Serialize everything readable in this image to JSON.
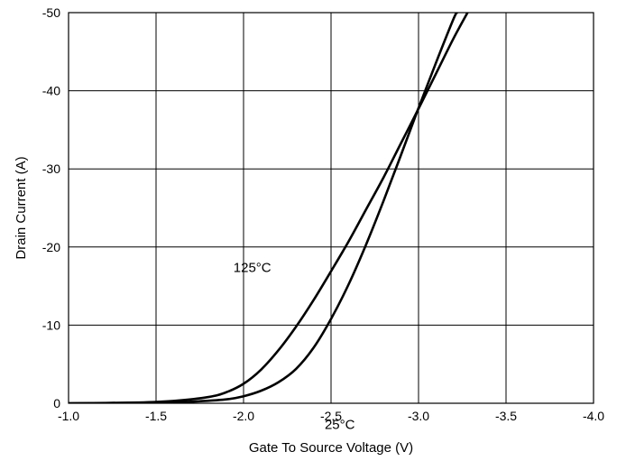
{
  "chart_data": {
    "type": "line",
    "title": "",
    "xlabel": "Gate To Source Voltage (V)",
    "ylabel": "Drain Current (A)",
    "xlim": [
      -1.0,
      -4.0
    ],
    "ylim": [
      0,
      -50
    ],
    "x_ticks": [
      -1.0,
      -1.5,
      -2.0,
      -2.5,
      -3.0,
      -3.5,
      -4.0
    ],
    "x_tick_labels": [
      "-1.0",
      "-1.5",
      "-2.0",
      "-2.5",
      "-3.0",
      "-3.5",
      "-4.0"
    ],
    "y_ticks": [
      0,
      -10,
      -20,
      -30,
      -40,
      -50
    ],
    "y_tick_labels": [
      "0",
      "-10",
      "-20",
      "-30",
      "-40",
      "-50"
    ],
    "grid": true,
    "legend": "none",
    "series": [
      {
        "name": "125°C",
        "color": "#000000",
        "x": [
          -1.0,
          -1.4,
          -1.6,
          -1.8,
          -1.9,
          -2.0,
          -2.1,
          -2.2,
          -2.3,
          -2.4,
          -2.5,
          -2.6,
          -2.7,
          -2.8,
          -2.9,
          -3.0,
          -3.1,
          -3.2,
          -3.28
        ],
        "y": [
          0,
          -0.1,
          -0.3,
          -0.8,
          -1.4,
          -2.5,
          -4.3,
          -6.8,
          -9.8,
          -13.2,
          -16.9,
          -20.7,
          -24.8,
          -28.9,
          -33.3,
          -37.7,
          -42.2,
          -46.7,
          -50
        ]
      },
      {
        "name": "25°C",
        "color": "#000000",
        "x": [
          -1.0,
          -1.5,
          -1.7,
          -1.9,
          -2.0,
          -2.1,
          -2.2,
          -2.3,
          -2.4,
          -2.5,
          -2.6,
          -2.7,
          -2.8,
          -2.9,
          -3.0,
          -3.1,
          -3.2,
          -3.22
        ],
        "y": [
          0,
          -0.05,
          -0.2,
          -0.5,
          -0.9,
          -1.6,
          -2.7,
          -4.4,
          -7.1,
          -10.8,
          -15.2,
          -20.3,
          -25.9,
          -31.8,
          -37.8,
          -43.6,
          -49.2,
          -50
        ]
      }
    ],
    "annotations": [
      {
        "text": "125°C",
        "x": -2.05,
        "y": -16.8
      },
      {
        "text": "25°C",
        "x": -2.55,
        "y": 3.3
      }
    ]
  }
}
